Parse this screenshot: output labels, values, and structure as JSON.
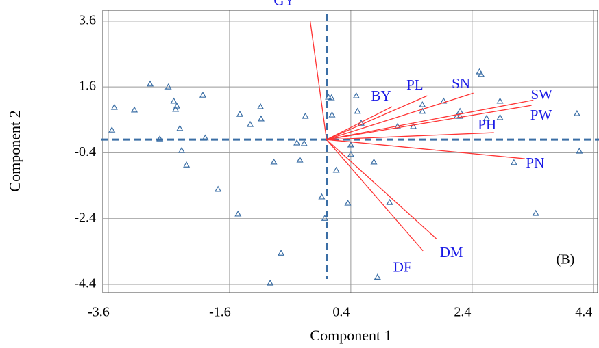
{
  "chart_data": {
    "type": "scatter",
    "x_label": "Component 1",
    "y_label": "Component 2",
    "annotation": "(B)",
    "xlim": [
      -3.69,
      4.47
    ],
    "ylim": [
      -4.65,
      3.93
    ],
    "xticks": [
      -3.6,
      -1.6,
      0.4,
      2.4,
      4.4
    ],
    "yticks": [
      3.6,
      1.6,
      -0.4,
      -2.4,
      -4.4
    ],
    "grid": true,
    "color": "#3a6ea5",
    "vector_color": "#ff3333",
    "label_color": "#1a1ae6",
    "x": [
      -3.54,
      -3.5,
      -3.17,
      -2.91,
      -2.61,
      -2.52,
      -2.49,
      -2.47,
      -2.42,
      -2.75,
      -2.39,
      -2.31,
      -2.04,
      -2.0,
      -1.79,
      -1.46,
      -1.43,
      -1.26,
      -1.09,
      -1.08,
      -0.87,
      -0.75,
      -0.93,
      -0.49,
      -0.44,
      -0.37,
      -0.35,
      -0.08,
      -0.03,
      0.03,
      0.08,
      0.09,
      0.16,
      0.35,
      0.4,
      0.4,
      0.49,
      0.51,
      0.57,
      0.78,
      1.04,
      1.17,
      0.84,
      1.43,
      1.58,
      1.58,
      1.93,
      2.15,
      2.2,
      2.2,
      2.52,
      2.55,
      2.64,
      2.86,
      2.86,
      3.09,
      3.45,
      4.13,
      4.17
    ],
    "y": [
      0.29,
      0.98,
      0.9,
      1.69,
      1.6,
      1.17,
      0.92,
      1.02,
      0.34,
      0.02,
      -0.33,
      -0.77,
      1.35,
      0.05,
      -1.51,
      -2.26,
      0.77,
      0.46,
      1.0,
      0.63,
      -0.68,
      -3.45,
      -4.36,
      -0.1,
      -0.62,
      -0.12,
      0.71,
      -1.74,
      -2.39,
      1.29,
      1.27,
      0.75,
      -0.93,
      -1.93,
      -0.16,
      -0.45,
      1.33,
      0.86,
      0.5,
      -0.68,
      -1.91,
      0.4,
      -4.18,
      0.4,
      1.06,
      0.86,
      1.17,
      0.71,
      0.86,
      0.71,
      2.06,
      1.98,
      0.65,
      1.17,
      0.67,
      -0.7,
      -2.24,
      0.79,
      -0.35
    ],
    "vectors": [
      {
        "name": "GY",
        "x": -0.27,
        "y": 3.6
      },
      {
        "name": "BY",
        "x": 1.08,
        "y": 1.0
      },
      {
        "name": "PL",
        "x": 1.66,
        "y": 1.33
      },
      {
        "name": "SN",
        "x": 2.42,
        "y": 1.41
      },
      {
        "name": "SW",
        "x": 3.41,
        "y": 1.2
      },
      {
        "name": "PW",
        "x": 3.38,
        "y": 1.04
      },
      {
        "name": "PH",
        "x": 2.76,
        "y": 0.21
      },
      {
        "name": "PN",
        "x": 3.27,
        "y": -0.58
      },
      {
        "name": "DM",
        "x": 1.81,
        "y": -3.01
      },
      {
        "name": "DF",
        "x": 1.59,
        "y": -3.38
      }
    ]
  }
}
